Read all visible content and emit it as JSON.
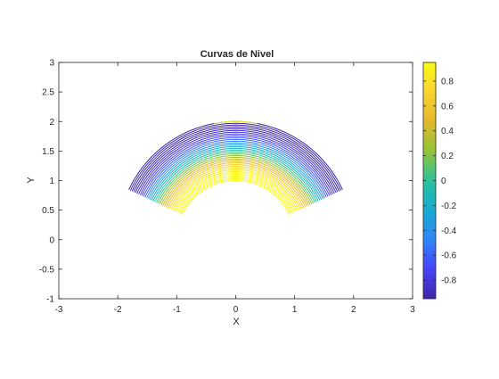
{
  "chart_data": {
    "type": "contour",
    "title": "Curvas de Nivel",
    "xlabel": "X",
    "ylabel": "Y",
    "xlim": [
      -3,
      3
    ],
    "ylim": [
      -1,
      3
    ],
    "xticks": [
      -3,
      -2,
      -1,
      0,
      1,
      2,
      3
    ],
    "yticks": [
      -1,
      -0.5,
      0,
      0.5,
      1,
      1.5,
      2,
      2.5,
      3
    ],
    "grid": false,
    "colormap": "parula",
    "colorbar": {
      "position": "right",
      "range": [
        -0.95,
        0.95
      ],
      "ticks": [
        -0.8,
        -0.6,
        -0.4,
        -0.2,
        0,
        0.2,
        0.4,
        0.6,
        0.8
      ]
    },
    "domain": {
      "shape": "annular-sector",
      "center": [
        0,
        0
      ],
      "inner_radius": 1,
      "outer_radius": 2,
      "angle_range_deg": [
        25,
        155
      ]
    },
    "colors": {
      "axis": "#262626",
      "parula_stops": [
        "#3e26a8",
        "#4743f8",
        "#2f86f7",
        "#16abd0",
        "#2cc29a",
        "#92c437",
        "#e2b72b",
        "#fcd332",
        "#f9fb15"
      ]
    }
  }
}
